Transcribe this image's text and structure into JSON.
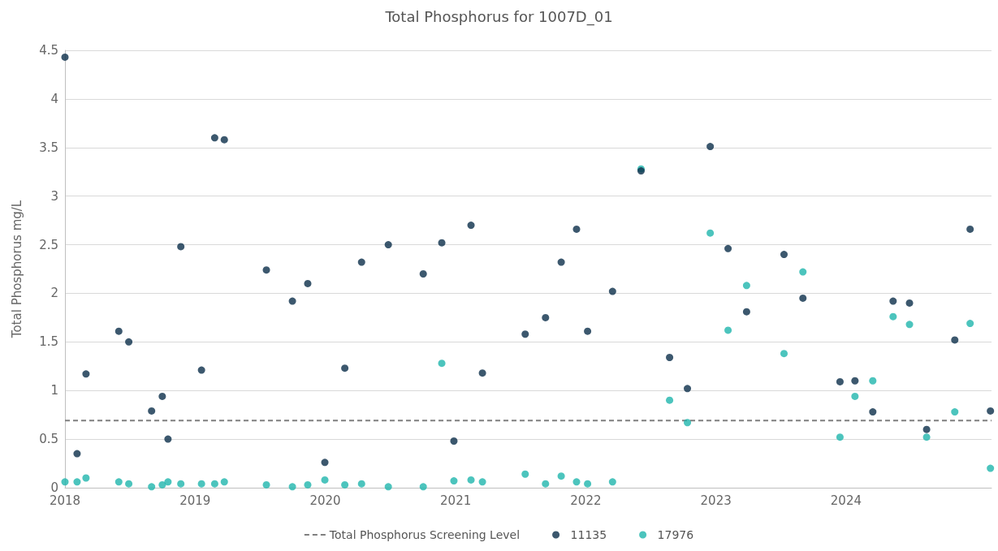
{
  "chart_data": {
    "type": "scatter",
    "title": "Total Phosphorus for 1007D_01",
    "ylabel": "Total Phosphorus mg/L",
    "x": [
      "2018-01-01",
      "2018-02-04",
      "2018-03-01",
      "2018-06-01",
      "2018-06-29",
      "2018-09-01",
      "2018-10-01",
      "2018-10-17",
      "2018-11-22",
      "2019-01-19",
      "2019-02-25",
      "2019-03-24",
      "2019-07-20",
      "2019-10-01",
      "2019-11-13",
      "2019-12-31",
      "2020-02-25",
      "2020-04-12",
      "2020-06-26",
      "2020-10-02",
      "2020-11-23",
      "2020-12-27",
      "2021-02-13",
      "2021-03-17",
      "2021-07-15",
      "2021-09-10",
      "2021-10-24",
      "2021-12-06",
      "2022-01-06",
      "2022-03-17",
      "2022-06-05",
      "2022-08-24",
      "2022-10-13",
      "2022-12-16",
      "2023-02-04",
      "2023-03-28",
      "2023-07-11",
      "2023-09-02",
      "2023-12-15",
      "2024-01-26",
      "2024-03-16",
      "2024-05-12",
      "2024-06-27",
      "2024-08-14",
      "2024-11-01",
      "2024-12-14",
      "2025-02-09"
    ],
    "series": [
      {
        "name": "11135",
        "color": "#0b2e4a",
        "values": [
          4.43,
          0.35,
          1.17,
          1.61,
          1.5,
          0.79,
          0.94,
          0.5,
          2.48,
          1.21,
          3.6,
          3.58,
          2.24,
          1.92,
          2.1,
          0.26,
          1.23,
          2.32,
          2.5,
          2.2,
          2.52,
          0.48,
          2.7,
          1.18,
          1.58,
          1.75,
          2.32,
          2.66,
          1.61,
          2.02,
          3.26,
          1.34,
          1.02,
          3.51,
          2.46,
          1.81,
          2.4,
          1.95,
          1.09,
          1.1,
          0.78,
          1.92,
          1.9,
          0.6,
          1.52,
          2.66,
          0.79
        ]
      },
      {
        "name": "17976",
        "color": "#1fb5ad",
        "values": [
          0.06,
          0.06,
          0.1,
          0.06,
          0.04,
          0.01,
          0.03,
          0.06,
          0.04,
          0.04,
          0.04,
          0.06,
          0.03,
          0.01,
          0.03,
          0.08,
          0.03,
          0.04,
          0.01,
          0.01,
          1.28,
          0.07,
          0.08,
          0.06,
          0.14,
          0.04,
          0.12,
          0.06,
          0.04,
          0.06,
          3.28,
          0.9,
          0.67,
          2.62,
          1.62,
          2.08,
          1.38,
          2.22,
          0.52,
          0.94,
          1.1,
          1.76,
          1.68,
          0.52,
          0.78,
          1.69,
          0.2
        ]
      }
    ],
    "xlim": [
      "2018-01-01",
      "2025-02-12"
    ],
    "xticks": [
      {
        "value": "2018-01-01",
        "label": "2018"
      },
      {
        "value": "2019-01-01",
        "label": "2019"
      },
      {
        "value": "2020-01-01",
        "label": "2020"
      },
      {
        "value": "2021-01-01",
        "label": "2021"
      },
      {
        "value": "2022-01-01",
        "label": "2022"
      },
      {
        "value": "2023-01-01",
        "label": "2023"
      },
      {
        "value": "2024-01-01",
        "label": "2024"
      }
    ],
    "ylim": [
      0,
      4.5
    ],
    "yticks": [
      0,
      0.5,
      1,
      1.5,
      2,
      2.5,
      3,
      3.5,
      4,
      4.5
    ],
    "ref_lines": [
      {
        "axis": "y",
        "value": 0.69,
        "label": "Total Phosphorus Screening Level",
        "color": "#7f7f7f",
        "line_style": "dashed"
      }
    ],
    "grid": "y",
    "legend": "bottom",
    "marker": "circle"
  }
}
